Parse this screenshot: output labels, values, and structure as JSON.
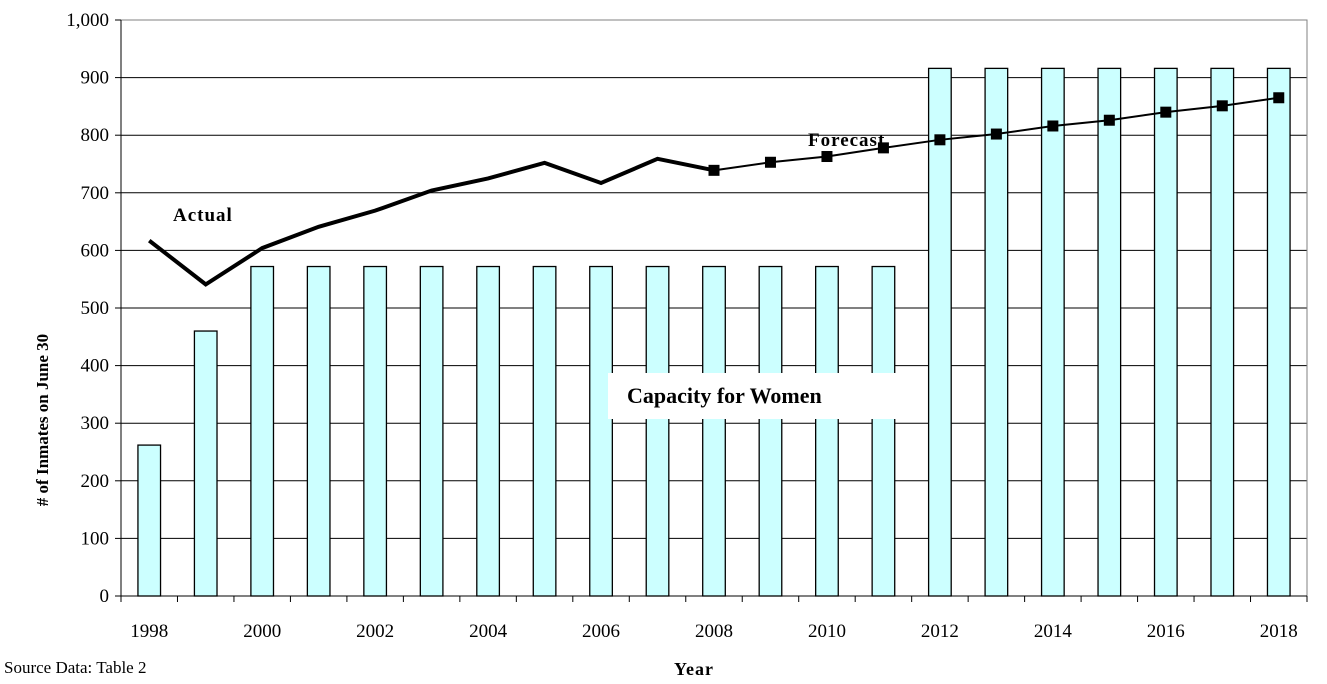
{
  "chart_data": {
    "type": "bar",
    "categories": [
      "1998",
      "1999",
      "2000",
      "2001",
      "2002",
      "2003",
      "2004",
      "2005",
      "2006",
      "2007",
      "2008",
      "2009",
      "2010",
      "2011",
      "2012",
      "2013",
      "2014",
      "2015",
      "2016",
      "2017",
      "2018"
    ],
    "series": [
      {
        "name": "Capacity for Women",
        "type": "bar",
        "color": "#ccffff",
        "values": [
          262,
          460,
          572,
          572,
          572,
          572,
          572,
          572,
          572,
          572,
          572,
          572,
          572,
          572,
          916,
          916,
          916,
          916,
          916,
          916,
          916
        ]
      },
      {
        "name": "Actual",
        "type": "line",
        "color": "#000000",
        "values": [
          617,
          541,
          604,
          641,
          669,
          704,
          725,
          752,
          717,
          759,
          739,
          null,
          null,
          null,
          null,
          null,
          null,
          null,
          null,
          null,
          null
        ]
      },
      {
        "name": "Forecast",
        "type": "line",
        "marker": "square",
        "color": "#000000",
        "values": [
          null,
          null,
          null,
          null,
          null,
          null,
          null,
          null,
          null,
          null,
          739,
          753,
          763,
          778,
          792,
          802,
          816,
          826,
          840,
          851,
          865
        ]
      }
    ],
    "ylim": [
      0,
      1000
    ],
    "yticks": [
      "0",
      "100",
      "200",
      "300",
      "400",
      "500",
      "600",
      "700",
      "800",
      "900",
      "1,000"
    ],
    "xticks": [
      "1998",
      "2000",
      "2002",
      "2004",
      "2006",
      "2008",
      "2010",
      "2012",
      "2014",
      "2016",
      "2018"
    ],
    "xlabel": "Year",
    "ylabel": "# of Inmates on June 30",
    "grid": true,
    "annotations": {
      "actual": "Actual",
      "forecast": "Forecast",
      "capacity": "Capacity for Women"
    },
    "source": "Source Data: Table 2"
  }
}
